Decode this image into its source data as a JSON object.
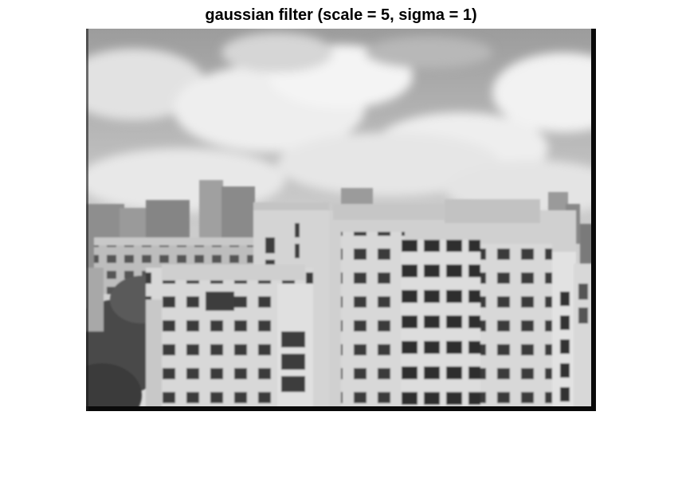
{
  "figure": {
    "title": "gaussian filter (scale = 5, sigma = 1)"
  },
  "image": {
    "colormap": "grayscale",
    "scene": "blurred-cityscape-photo"
  }
}
